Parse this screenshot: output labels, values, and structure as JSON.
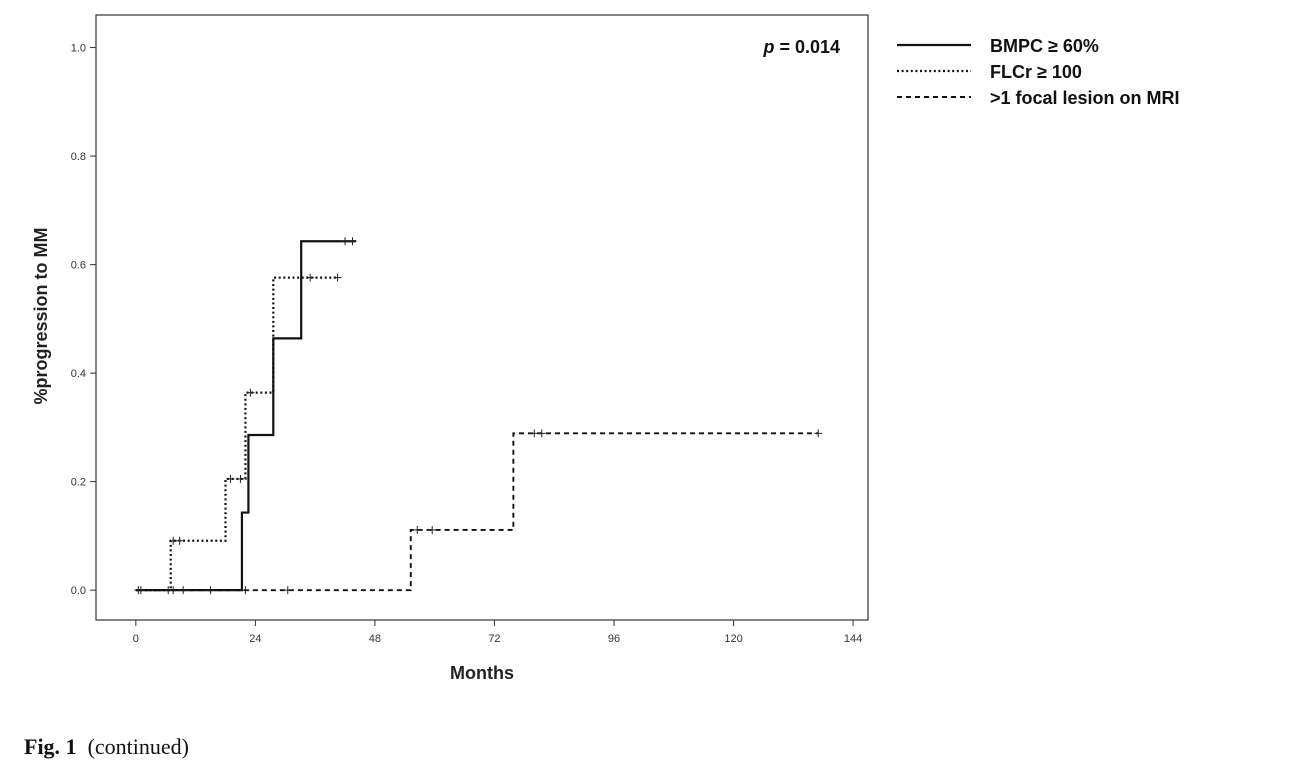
{
  "chart_data": {
    "type": "line",
    "subtype": "kaplan-meier step curves",
    "title": "",
    "xlabel": "Months",
    "ylabel": "%progression to MM",
    "xlim": [
      -8,
      147
    ],
    "ylim": [
      -0.055,
      1.06
    ],
    "x_ticks": [
      0,
      24,
      48,
      72,
      96,
      120,
      144
    ],
    "y_ticks": [
      0.0,
      0.2,
      0.4,
      0.6,
      0.8,
      1.0
    ],
    "x_tick_labels": [
      "0",
      "24",
      "48",
      "72",
      "96",
      "120",
      "144"
    ],
    "y_tick_labels": [
      "0.0",
      "0.2",
      "0.4",
      "0.6",
      "0.8",
      "1.0"
    ],
    "grid": false,
    "legend_position": "outside-right-top",
    "annotation": {
      "prefix": "p",
      "text": " = 0.014"
    },
    "series": [
      {
        "name": "BMPC ≥ 60%",
        "style": "solid",
        "color": "#111111",
        "steps": [
          [
            0,
            0.0
          ],
          [
            21.3,
            0.143
          ],
          [
            22.6,
            0.286
          ],
          [
            27.6,
            0.464
          ],
          [
            33.2,
            0.643
          ],
          [
            44.2,
            0.643
          ]
        ],
        "censored": [
          [
            0.5,
            0.0
          ],
          [
            6.5,
            0.0
          ],
          [
            7.5,
            0.0
          ],
          [
            9.5,
            0.0
          ],
          [
            15.0,
            0.0
          ],
          [
            42.0,
            0.643
          ],
          [
            43.5,
            0.643
          ]
        ]
      },
      {
        "name": "FLCr ≥ 100",
        "style": "dotted",
        "color": "#111111",
        "steps": [
          [
            0,
            0.0
          ],
          [
            7.0,
            0.091
          ],
          [
            18.0,
            0.205
          ],
          [
            22.0,
            0.364
          ],
          [
            27.6,
            0.576
          ],
          [
            40.5,
            0.576
          ]
        ],
        "censored": [
          [
            1.0,
            0.0
          ],
          [
            7.5,
            0.091
          ],
          [
            8.8,
            0.091
          ],
          [
            19.0,
            0.205
          ],
          [
            21.0,
            0.205
          ],
          [
            23.0,
            0.364
          ],
          [
            35.0,
            0.576
          ],
          [
            40.5,
            0.576
          ]
        ]
      },
      {
        "name": ">1 focal lesion on MRI",
        "style": "dashed",
        "color": "#111111",
        "steps": [
          [
            0,
            0.0
          ],
          [
            55.2,
            0.111
          ],
          [
            75.8,
            0.289
          ],
          [
            137.0,
            0.289
          ]
        ],
        "censored": [
          [
            22.0,
            0.0
          ],
          [
            30.5,
            0.0
          ],
          [
            56.5,
            0.111
          ],
          [
            59.5,
            0.111
          ],
          [
            80.0,
            0.289
          ],
          [
            81.5,
            0.289
          ],
          [
            137.0,
            0.289
          ]
        ]
      }
    ]
  },
  "caption": {
    "label": "Fig. 1",
    "text": "(continued)"
  }
}
